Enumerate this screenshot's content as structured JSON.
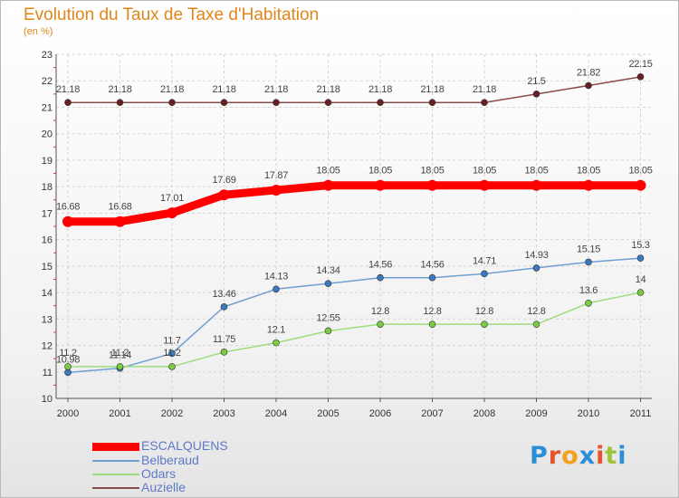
{
  "title": "Evolution du Taux de Taxe d'Habitation",
  "subtitle": "(en %)",
  "logo": {
    "text": "Proxiti",
    "colors": [
      "#2c8fd6",
      "#e8532b",
      "#f3a21b",
      "#2c8fd6",
      "#e8532b",
      "#9fc43a",
      "#2c8fd6"
    ]
  },
  "chart_data": {
    "type": "line",
    "title": "Evolution du Taux de Taxe d'Habitation",
    "ylabel": "(en %)",
    "xlabel": "",
    "x": [
      "2000",
      "2001",
      "2002",
      "2003",
      "2004",
      "2005",
      "2006",
      "2007",
      "2008",
      "2009",
      "2010",
      "2011"
    ],
    "ylim": [
      10,
      23
    ],
    "yticks": [
      "10",
      "11",
      "12",
      "13",
      "14",
      "15",
      "16",
      "17",
      "18",
      "19",
      "20",
      "21",
      "22",
      "23"
    ],
    "grid": true,
    "legend": "bottom-left",
    "series": [
      {
        "name": "ESCALQUENS",
        "color": "#ff0000",
        "marker": "#ff0000",
        "width": 9,
        "r": 6,
        "values": [
          16.68,
          16.68,
          17.01,
          17.69,
          17.87,
          18.05,
          18.05,
          18.05,
          18.05,
          18.05,
          18.05,
          18.05
        ],
        "labels": [
          "16.68",
          "16.68",
          "17.01",
          "17.69",
          "17.87",
          "18.05",
          "18.05",
          "18.05",
          "18.05",
          "18.05",
          "18.05",
          "18.05"
        ]
      },
      {
        "name": "Belberaud",
        "color": "#6f9fd0",
        "marker": "#3c78c0",
        "width": 1.5,
        "r": 3.5,
        "values": [
          10.98,
          11.14,
          11.7,
          13.46,
          14.13,
          14.34,
          14.56,
          14.56,
          14.71,
          14.93,
          15.15,
          15.3
        ],
        "labels": [
          "10.98",
          "11.14",
          "11.7",
          "13.46",
          "14.13",
          "14.34",
          "14.56",
          "14.56",
          "14.71",
          "14.93",
          "15.15",
          "15.3"
        ]
      },
      {
        "name": "Odars",
        "color": "#9fdc7e",
        "marker": "#7bcc45",
        "width": 1.5,
        "r": 3.5,
        "values": [
          11.2,
          11.2,
          11.2,
          11.75,
          12.1,
          12.55,
          12.8,
          12.8,
          12.8,
          12.8,
          13.6,
          14
        ],
        "labels": [
          "11.2",
          "11.2",
          "11.2",
          "11.75",
          "12.1",
          "12.55",
          "12.8",
          "12.8",
          "12.8",
          "12.8",
          "13.6",
          "14"
        ]
      },
      {
        "name": "Auzielle",
        "color": "#8a4b4b",
        "marker": "#6b1f1f",
        "width": 1.5,
        "r": 3.5,
        "values": [
          21.18,
          21.18,
          21.18,
          21.18,
          21.18,
          21.18,
          21.18,
          21.18,
          21.18,
          21.5,
          21.82,
          22.15
        ],
        "labels": [
          "21.18",
          "21.18",
          "21.18",
          "21.18",
          "21.18",
          "21.18",
          "21.18",
          "21.18",
          "21.18",
          "21.5",
          "21.82",
          "22.15"
        ]
      }
    ]
  }
}
